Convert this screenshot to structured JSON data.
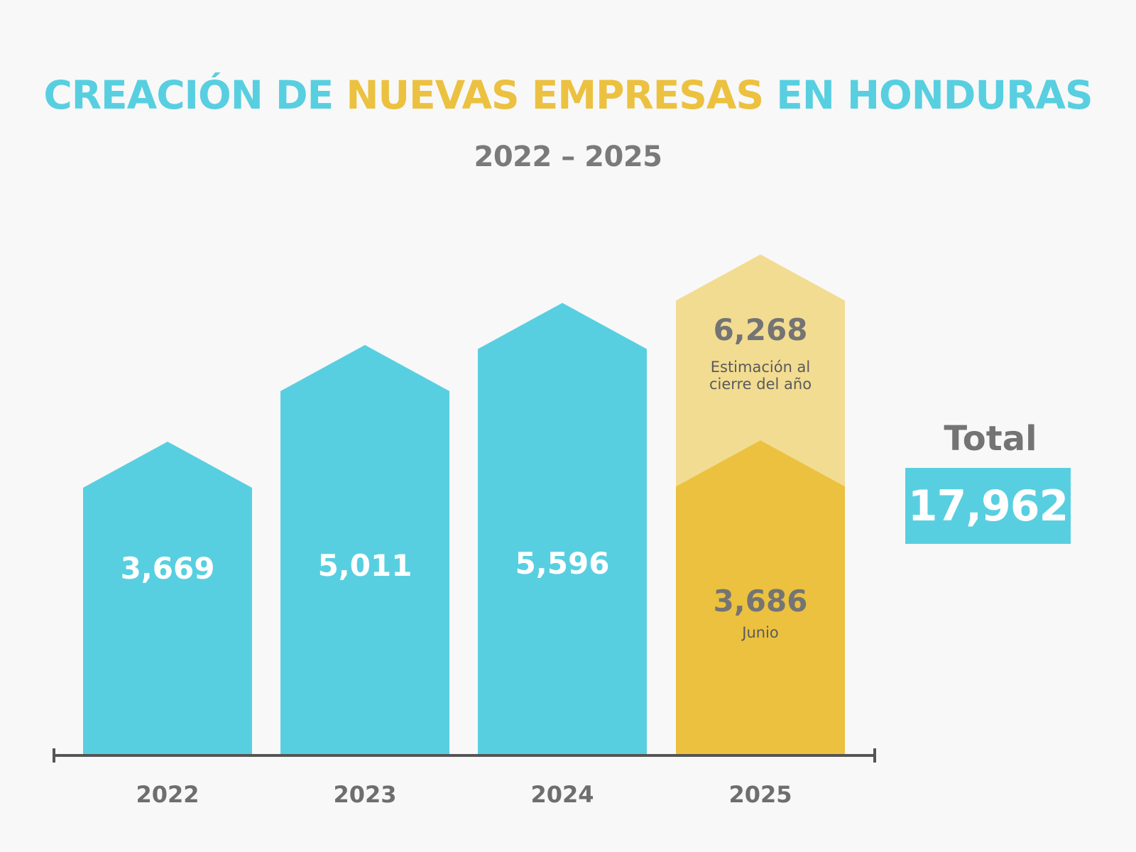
{
  "title": {
    "part1": "CREACIÓN DE ",
    "part2": "NUEVAS EMPRESAS",
    "part3": " EN HONDURAS"
  },
  "subtitle": "2022 – 2025",
  "total": {
    "label": "Total",
    "value": "17,962"
  },
  "colors": {
    "blue": "#58cfe0",
    "gold": "#ebc13f",
    "gold_light": "#f2dc92",
    "axis": "#555555",
    "label_gray": "#6e6e6e"
  },
  "chart_data": {
    "type": "bar",
    "categories": [
      "2022",
      "2023",
      "2024",
      "2025"
    ],
    "values": [
      3669,
      5011,
      5596,
      3686
    ],
    "value_labels": [
      "3,669",
      "5,011",
      "5,596",
      "3,686"
    ],
    "estimate": {
      "category": "2025",
      "value": 6268,
      "value_label": "6,268",
      "note": "Estimación al cierre del año"
    },
    "partial_note": "Junio",
    "title": "CREACIÓN DE NUEVAS EMPRESAS EN HONDURAS",
    "subtitle": "2022 – 2025",
    "ylim": [
      0,
      7000
    ],
    "grid": false
  }
}
